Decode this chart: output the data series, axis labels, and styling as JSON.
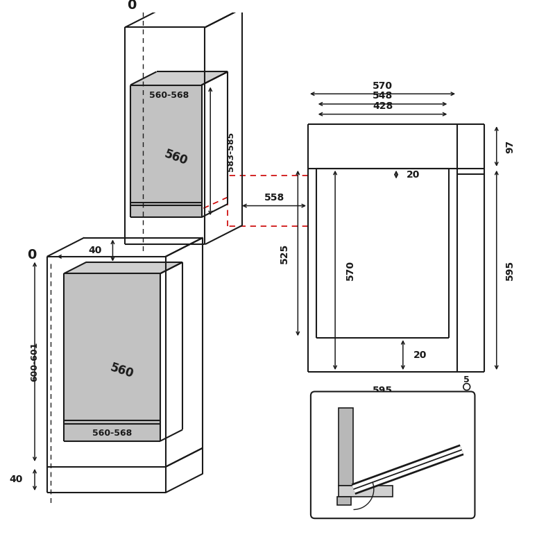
{
  "bg_color": "#ffffff",
  "lc": "#1a1a1a",
  "gray": "#b8b8b8",
  "gray2": "#d0d0d0",
  "red": "#cc0000",
  "fs": 10,
  "fsb": 12,
  "lw": 1.5,
  "lw_thin": 1.0
}
